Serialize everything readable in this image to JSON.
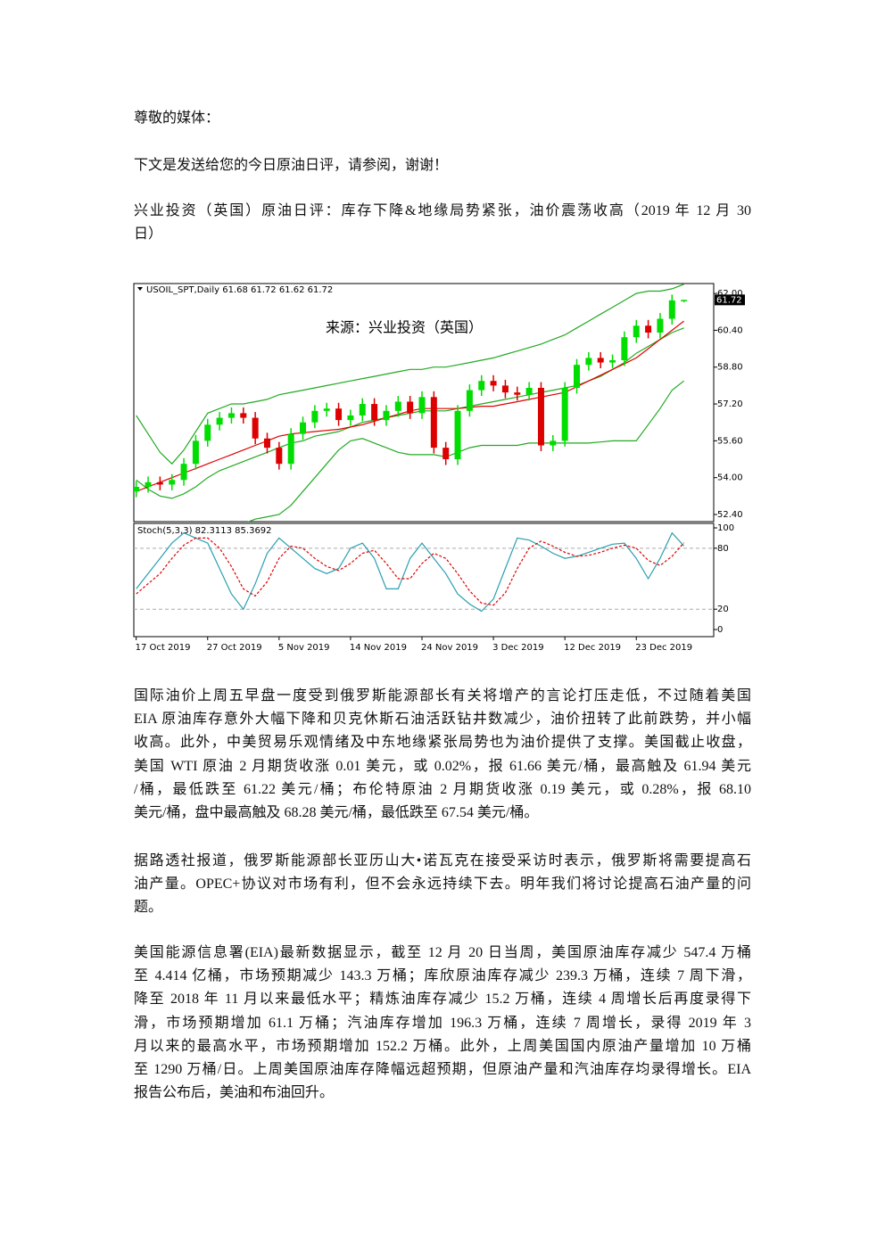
{
  "greeting": "尊敬的媒体：",
  "intro": "下文是发送给您的今日原油日评，请参阅，谢谢！",
  "headline": [
    "兴业投资（英国）原油日评：库存下降&地缘局势紧张，油价震荡收高（2019 年 12 月 30",
    "日）"
  ],
  "chart_data": {
    "type": "candlestick",
    "header": "USOIL_SPT,Daily 61.68 61.72 61.62 61.72",
    "watermark": "来源：兴业投资（英国）",
    "last_price": 61.72,
    "up_color": "#00dd00",
    "down_color": "#dd0000",
    "xlim": [
      -0.2,
      48.5
    ],
    "xticks": [
      {
        "value": 0,
        "label": "17 Oct 2019"
      },
      {
        "value": 6,
        "label": "27 Oct 2019"
      },
      {
        "value": 12,
        "label": "5 Nov 2019"
      },
      {
        "value": 18,
        "label": "14 Nov 2019"
      },
      {
        "value": 24,
        "label": "24 Nov 2019"
      },
      {
        "value": 30,
        "label": "3 Dec 2019"
      },
      {
        "value": 36,
        "label": "12 Dec 2019"
      },
      {
        "value": 42,
        "label": "23 Dec 2019"
      }
    ],
    "ylim": [
      52.09,
      62.43
    ],
    "yticks": [
      {
        "value": 62,
        "label": "62.00"
      },
      {
        "value": 60.4,
        "label": "60.40"
      },
      {
        "value": 58.8,
        "label": "58.80"
      },
      {
        "value": 57.2,
        "label": "57.20"
      },
      {
        "value": 55.6,
        "label": "55.60"
      },
      {
        "value": 54,
        "label": "54.00"
      },
      {
        "value": 52.4,
        "label": "52.40"
      }
    ],
    "candles": {
      "open": [
        53.4,
        53.6,
        53.8,
        53.7,
        53.9,
        54.6,
        55.6,
        56.3,
        56.6,
        56.8,
        56.6,
        55.7,
        55.3,
        54.6,
        55.9,
        56.4,
        56.9,
        57.0,
        56.5,
        56.7,
        57.2,
        56.5,
        56.9,
        57.3,
        56.8,
        57.5,
        55.3,
        54.8,
        56.9,
        57.8,
        58.2,
        58.0,
        57.7,
        57.6,
        57.9,
        55.4,
        55.6,
        57.9,
        58.9,
        59.2,
        59.0,
        59.1,
        60.1,
        60.6,
        60.3,
        60.9,
        61.68
      ],
      "high": [
        53.85,
        54.05,
        54.05,
        54.15,
        54.85,
        55.85,
        56.55,
        56.85,
        57.05,
        57.05,
        56.85,
        55.95,
        55.55,
        56.15,
        56.65,
        57.15,
        57.25,
        57.25,
        56.95,
        57.45,
        57.45,
        57.15,
        57.55,
        57.55,
        57.75,
        57.75,
        55.55,
        57.15,
        58.05,
        58.45,
        58.45,
        58.25,
        57.95,
        58.15,
        58.15,
        55.85,
        58.15,
        59.15,
        59.45,
        59.45,
        59.35,
        60.35,
        60.85,
        60.85,
        61.15,
        61.95,
        61.72
      ],
      "low": [
        53.15,
        53.35,
        53.45,
        53.45,
        53.65,
        54.35,
        55.35,
        56.05,
        56.35,
        56.35,
        55.45,
        55.05,
        54.35,
        54.35,
        55.65,
        56.15,
        56.65,
        56.25,
        56.25,
        56.45,
        56.25,
        56.25,
        56.65,
        56.55,
        56.55,
        55.05,
        54.55,
        54.55,
        56.65,
        57.55,
        57.75,
        57.45,
        57.35,
        57.35,
        55.15,
        55.15,
        55.35,
        57.65,
        58.65,
        58.75,
        58.75,
        58.85,
        59.85,
        60.05,
        60.05,
        60.65,
        61.62
      ],
      "close": [
        53.6,
        53.8,
        53.7,
        53.9,
        54.6,
        55.6,
        56.3,
        56.6,
        56.8,
        56.6,
        55.7,
        55.3,
        54.6,
        55.9,
        56.4,
        56.9,
        57.0,
        56.5,
        56.7,
        57.2,
        56.5,
        56.9,
        57.3,
        56.8,
        57.5,
        55.3,
        54.8,
        56.9,
        57.8,
        58.2,
        58.0,
        57.7,
        57.6,
        57.9,
        55.4,
        55.6,
        57.9,
        58.9,
        59.2,
        59.0,
        59.1,
        60.1,
        60.6,
        60.3,
        60.9,
        61.7,
        61.72
      ]
    },
    "overlays": [
      {
        "color": "#22aa22",
        "values": [
          56.7,
          55.9,
          55.1,
          54.6,
          55.2,
          56.0,
          56.8,
          57.0,
          57.2,
          57.2,
          57.3,
          57.4,
          57.6,
          57.7,
          57.8,
          57.9,
          58.0,
          58.1,
          58.2,
          58.3,
          58.4,
          58.5,
          58.6,
          58.7,
          58.7,
          58.8,
          58.8,
          58.9,
          59.0,
          59.1,
          59.2,
          59.35,
          59.5,
          59.65,
          59.8,
          60.0,
          60.2,
          60.5,
          60.8,
          61.1,
          61.4,
          61.7,
          62.0,
          62.1,
          62.1,
          62.2,
          62.4
        ]
      },
      {
        "color": "#22aa22",
        "values": [
          53.9,
          53.5,
          53.2,
          53.1,
          53.3,
          53.6,
          54.0,
          54.3,
          54.5,
          54.7,
          54.9,
          55.1,
          55.3,
          55.5,
          55.6,
          55.8,
          55.9,
          56.0,
          56.2,
          56.4,
          56.5,
          56.6,
          56.7,
          56.8,
          56.9,
          56.9,
          56.9,
          57.0,
          57.1,
          57.2,
          57.3,
          57.4,
          57.5,
          57.6,
          57.7,
          57.8,
          57.9,
          58.0,
          58.2,
          58.4,
          58.7,
          59.0,
          59.4,
          59.7,
          60.0,
          60.3,
          60.5
        ]
      },
      {
        "color": "#22aa22",
        "values": [
          51.2,
          51.0,
          50.9,
          50.9,
          51.0,
          51.1,
          51.2,
          51.5,
          51.7,
          52.0,
          52.2,
          52.3,
          52.4,
          52.8,
          53.4,
          54.0,
          54.6,
          55.2,
          55.6,
          55.7,
          55.5,
          55.3,
          55.1,
          55.0,
          55.0,
          55.0,
          54.9,
          55.1,
          55.3,
          55.4,
          55.4,
          55.4,
          55.4,
          55.5,
          55.5,
          55.5,
          55.5,
          55.5,
          55.5,
          55.55,
          55.6,
          55.6,
          55.6,
          56.3,
          57.0,
          57.8,
          58.2
        ]
      },
      {
        "color": "#e00000",
        "values": [
          53.4,
          53.6,
          53.8,
          54.0,
          54.2,
          54.4,
          54.6,
          54.8,
          55.0,
          55.2,
          55.4,
          55.6,
          55.8,
          55.9,
          55.95,
          56.0,
          56.05,
          56.1,
          56.2,
          56.3,
          56.45,
          56.6,
          56.75,
          56.9,
          57.0,
          57.0,
          57.0,
          57.0,
          57.05,
          57.1,
          57.1,
          57.2,
          57.3,
          57.4,
          57.5,
          57.6,
          57.7,
          57.95,
          58.2,
          58.45,
          58.7,
          58.95,
          59.2,
          59.6,
          60.0,
          60.4,
          60.8
        ]
      }
    ],
    "stochastic": {
      "label": "Stoch(5,3,3) 82.3113 85.3692",
      "ylim": [
        -7,
        104.4
      ],
      "yticks": [
        100,
        80,
        20,
        0
      ],
      "grid_levels": [
        80,
        20
      ],
      "series": [
        {
          "color": "#2a9fb0",
          "dashed": false,
          "values": [
            40,
            55,
            70,
            85,
            95,
            90,
            85,
            60,
            35,
            20,
            45,
            75,
            90,
            80,
            70,
            60,
            55,
            60,
            80,
            85,
            70,
            40,
            40,
            70,
            85,
            70,
            55,
            35,
            25,
            18,
            30,
            60,
            90,
            88,
            82,
            75,
            70,
            72,
            76,
            80,
            84,
            85,
            70,
            50,
            70,
            95,
            82.3113
          ]
        },
        {
          "color": "#e00000",
          "dashed": true,
          "values": [
            35,
            45,
            55,
            70,
            83,
            90,
            90,
            80,
            62,
            40,
            33,
            47,
            70,
            82,
            80,
            70,
            62,
            58,
            65,
            75,
            78,
            65,
            50,
            50,
            65,
            75,
            70,
            55,
            38,
            26,
            24,
            36,
            60,
            80,
            87,
            82,
            76,
            72,
            73,
            76,
            80,
            83,
            80,
            68,
            63,
            72,
            85.3692
          ]
        }
      ]
    }
  },
  "paragraphs": [
    [
      "国际油价上周五早盘一度受到俄罗斯能源部长有关将增产的言论打压走低，不过随着美国",
      "EIA 原油库存意外大幅下降和贝克休斯石油活跃钻井数减少，油价扭转了此前跌势，并小幅",
      "收高。此外，中美贸易乐观情绪及中东地缘紧张局势也为油价提供了支撑。美国截止收盘，",
      "美国 WTI 原油 2 月期货收涨 0.01 美元，或 0.02%，报 61.66 美元/桶，最高触及 61.94 美元",
      "/桶，最低跌至 61.22 美元/桶；布伦特原油 2 月期货收涨 0.19 美元，或 0.28%，报 68.10",
      "美元/桶，盘中最高触及 68.28 美元/桶，最低跌至 67.54 美元/桶。"
    ],
    [
      "据路透社报道，俄罗斯能源部长亚历山大•诺瓦克在接受采访时表示，俄罗斯将需要提高石",
      "油产量。OPEC+协议对市场有利，但不会永远持续下去。明年我们将讨论提高石油产量的问",
      "题。"
    ],
    [
      "美国能源信息署(EIA)最新数据显示，截至 12 月 20 日当周，美国原油库存减少 547.4 万桶",
      "至 4.414 亿桶，市场预期减少 143.3 万桶；库欣原油库存减少 239.3 万桶，连续 7 周下滑，",
      "降至 2018 年 11 月以来最低水平；精炼油库存减少 15.2 万桶，连续 4 周增长后再度录得下",
      "滑，市场预期增加 61.1 万桶；汽油库存增加 196.3 万桶，连续 7 周增长，录得 2019 年 3",
      "月以来的最高水平，市场预期增加 152.2 万桶。此外，上周美国国内原油产量增加 10 万桶",
      "至 1290 万桶/日。上周美国原油库存降幅远超预期，但原油产量和汽油库存均录得增长。EIA",
      "报告公布后，美油和布油回升。"
    ]
  ]
}
